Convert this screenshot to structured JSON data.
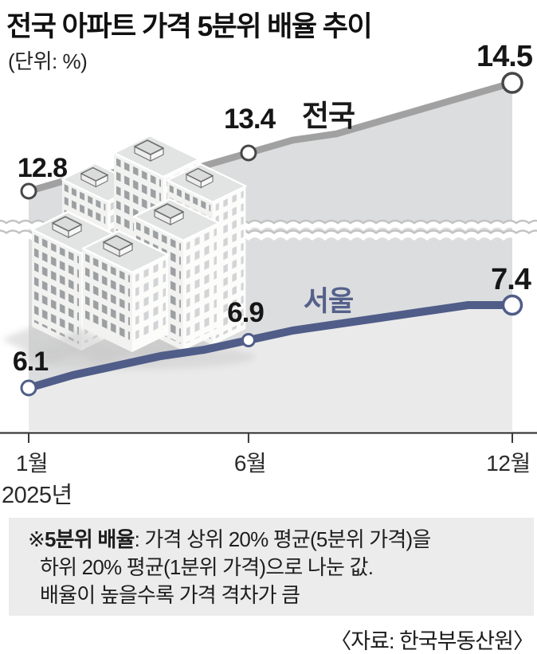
{
  "title": "전국 아파트 가격 5분위 배율 추이",
  "unit_label": "(단위: %)",
  "colors": {
    "national_line": "#a1a1a1",
    "national_marker_ring": "#474747",
    "seoul_line": "#505d88",
    "area_upper": "#dcddde",
    "area_lower": "#eaeaeb",
    "axis": "#3a3a3a",
    "wave_gray": "#c2c2c2",
    "footnote_bg": "#ececec"
  },
  "chart_data": {
    "type": "line",
    "broken_axis": true,
    "x_unit": "month",
    "x_tick_labels": [
      "1월",
      "6월",
      "12월"
    ],
    "x_tick_indices": [
      0,
      5,
      11
    ],
    "year_label": "2025년",
    "series": [
      {
        "name": "전국",
        "color": "#a1a1a1",
        "monthly_values": [
          12.8,
          13.0,
          13.1,
          13.0,
          13.2,
          13.4,
          13.6,
          13.7,
          13.9,
          14.1,
          14.3,
          14.5
        ],
        "point_labels": [
          {
            "month": "1월",
            "value": "12.8"
          },
          {
            "month": "6월",
            "value": "13.4"
          },
          {
            "month": "12월",
            "value": "14.5"
          }
        ]
      },
      {
        "name": "서울",
        "color": "#505d88",
        "monthly_values": [
          6.1,
          6.3,
          6.45,
          6.6,
          6.7,
          6.85,
          7.0,
          7.1,
          7.2,
          7.3,
          7.4,
          7.4
        ],
        "point_labels": [
          {
            "month": "1월",
            "value": "6.1"
          },
          {
            "month": "6월",
            "value": "6.9"
          },
          {
            "month": "12월",
            "value": "7.4"
          }
        ]
      }
    ]
  },
  "footnote": {
    "marker": "※",
    "term": "5분위 배율",
    "line1_rest": ": 가격 상위 20% 평균(5분위 가격)을",
    "line2": "하위 20% 평균(1분위 가격)으로 나눈 값.",
    "line3": "배율이 높을수록 가격 격차가 큼"
  },
  "source": {
    "label": "〈자료: 한국부동산원〉"
  }
}
